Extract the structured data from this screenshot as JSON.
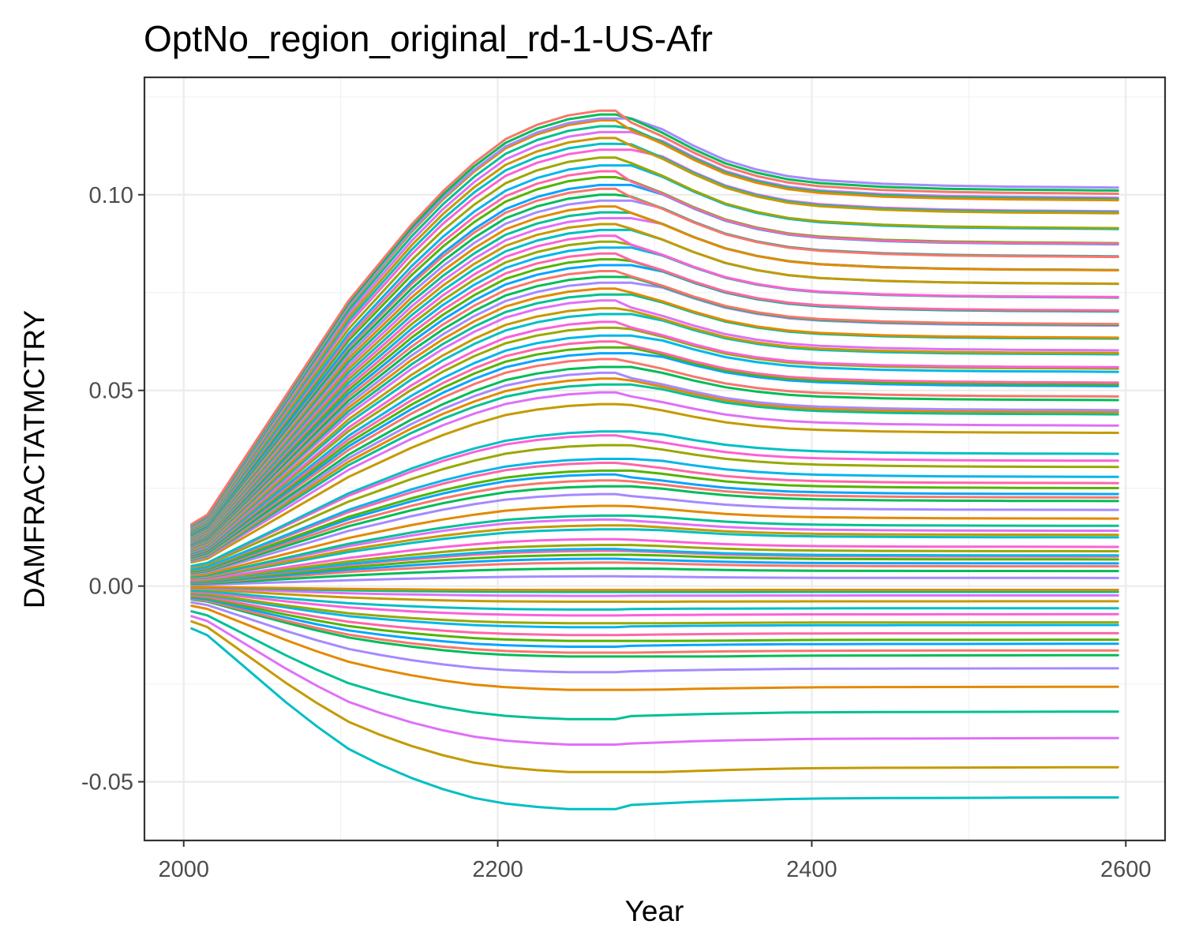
{
  "chart_data": {
    "type": "line",
    "title": "OptNo_region_original_rd-1-US-Afr",
    "xlabel": "Year",
    "ylabel": "DAMFRACTATMCTRY",
    "xlim": [
      1975,
      2625
    ],
    "ylim": [
      -0.065,
      0.13
    ],
    "x_ticks": [
      2000,
      2200,
      2400,
      2600
    ],
    "x_tick_labels": [
      "2000",
      "2200",
      "2400",
      "2600"
    ],
    "y_ticks": [
      -0.05,
      0.0,
      0.05,
      0.1
    ],
    "y_tick_labels": [
      "-0.05",
      "0.00",
      "0.05",
      "0.10"
    ],
    "grid": true,
    "legend": "none",
    "x": [
      2005,
      2015,
      2025,
      2045,
      2065,
      2085,
      2105,
      2125,
      2145,
      2165,
      2185,
      2205,
      2225,
      2245,
      2265,
      2275,
      2285,
      2305,
      2325,
      2345,
      2365,
      2385,
      2405,
      2445,
      2485,
      2525,
      2565,
      2595
    ],
    "curve_shape": {
      "positive_profile": [
        0.13,
        0.15,
        0.2,
        0.3,
        0.4,
        0.5,
        0.6,
        0.68,
        0.76,
        0.83,
        0.89,
        0.94,
        0.97,
        0.99,
        1.0,
        1.0,
        0.995,
        0.965,
        0.93,
        0.9,
        0.88,
        0.866,
        0.858,
        0.85,
        0.846,
        0.844,
        0.843,
        0.842
      ],
      "negative_profile": [
        0.19,
        0.22,
        0.28,
        0.4,
        0.52,
        0.63,
        0.73,
        0.8,
        0.86,
        0.91,
        0.95,
        0.975,
        0.99,
        1.0,
        1.0,
        1.0,
        0.997,
        0.99,
        0.983,
        0.978,
        0.974,
        0.97,
        0.968,
        0.966,
        0.965,
        0.964,
        0.963,
        0.963
      ]
    },
    "series_summary": {
      "peak_year": 2275,
      "end_year": 2595,
      "peak_values_sample": [
        0.1215,
        0.1205,
        0.1195,
        0.119,
        0.1175,
        0.116,
        0.1145,
        0.113,
        0.1115,
        0.1095,
        0.1075,
        0.106,
        0.1045,
        0.1025,
        0.1015,
        0.1,
        0.0985,
        0.097,
        0.0955,
        0.094,
        0.0925,
        0.091,
        0.0895,
        0.088,
        0.0865,
        0.085,
        0.0835,
        0.082,
        0.0805,
        0.079,
        0.0775,
        0.076,
        0.0745,
        0.073,
        0.071,
        0.0695,
        0.0675,
        0.066,
        0.064,
        0.0625,
        0.061,
        0.0595,
        0.058,
        0.056,
        0.0545,
        0.053,
        0.0515,
        0.0495,
        0.0465,
        0.0395,
        0.0385,
        0.036,
        0.0325,
        0.0315,
        0.0295,
        0.0285,
        0.027,
        0.0255,
        0.0235,
        0.0205,
        0.018,
        0.017,
        0.0155,
        0.0145,
        0.012,
        0.0105,
        0.0095,
        0.009,
        0.008,
        0.007,
        0.006,
        0.0045,
        0.0025,
        -0.001,
        -0.0015,
        -0.0025,
        -0.004,
        -0.006,
        -0.0075,
        -0.0095,
        -0.0105,
        -0.0125,
        -0.014,
        -0.0155,
        -0.017,
        -0.018,
        -0.022,
        -0.0265,
        -0.034,
        -0.0405,
        -0.0475,
        -0.057
      ],
      "colors_sample": [
        "#F8766D",
        "#E38900",
        "#C49A00",
        "#99A800",
        "#53B400",
        "#00BC56",
        "#00C094",
        "#00BFC4",
        "#00B6EB",
        "#06A4FF",
        "#A58AFF",
        "#DF70F8",
        "#FB61D7",
        "#FF66A8"
      ]
    }
  }
}
